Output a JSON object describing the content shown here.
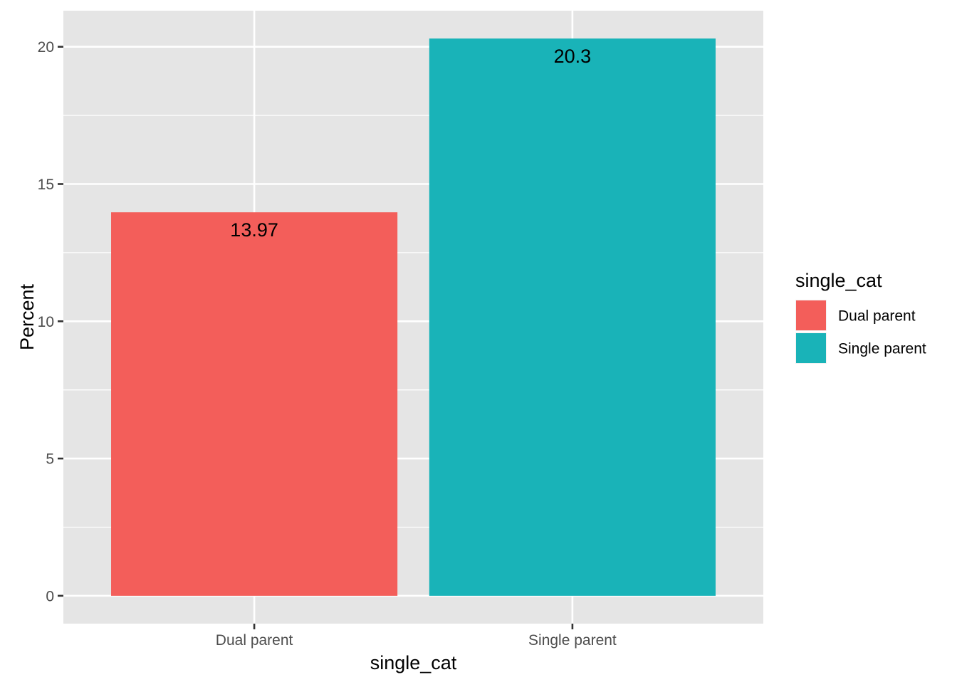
{
  "chart_data": {
    "type": "bar",
    "categories": [
      "Dual parent",
      "Single parent"
    ],
    "values": [
      13.97,
      20.3
    ],
    "value_labels": [
      "13.97",
      "20.3"
    ],
    "colors": [
      "#F35E5A",
      "#19B3B8"
    ],
    "xlabel": "single_cat",
    "ylabel": "Percent",
    "ylim": [
      -1.015,
      21.315
    ],
    "yticks": [
      0,
      5,
      10,
      15,
      20
    ],
    "yminor": [
      2.5,
      7.5,
      12.5,
      17.5
    ],
    "grid": true,
    "legend": {
      "title": "single_cat",
      "position": "right",
      "entries": [
        "Dual parent",
        "Single parent"
      ]
    }
  }
}
